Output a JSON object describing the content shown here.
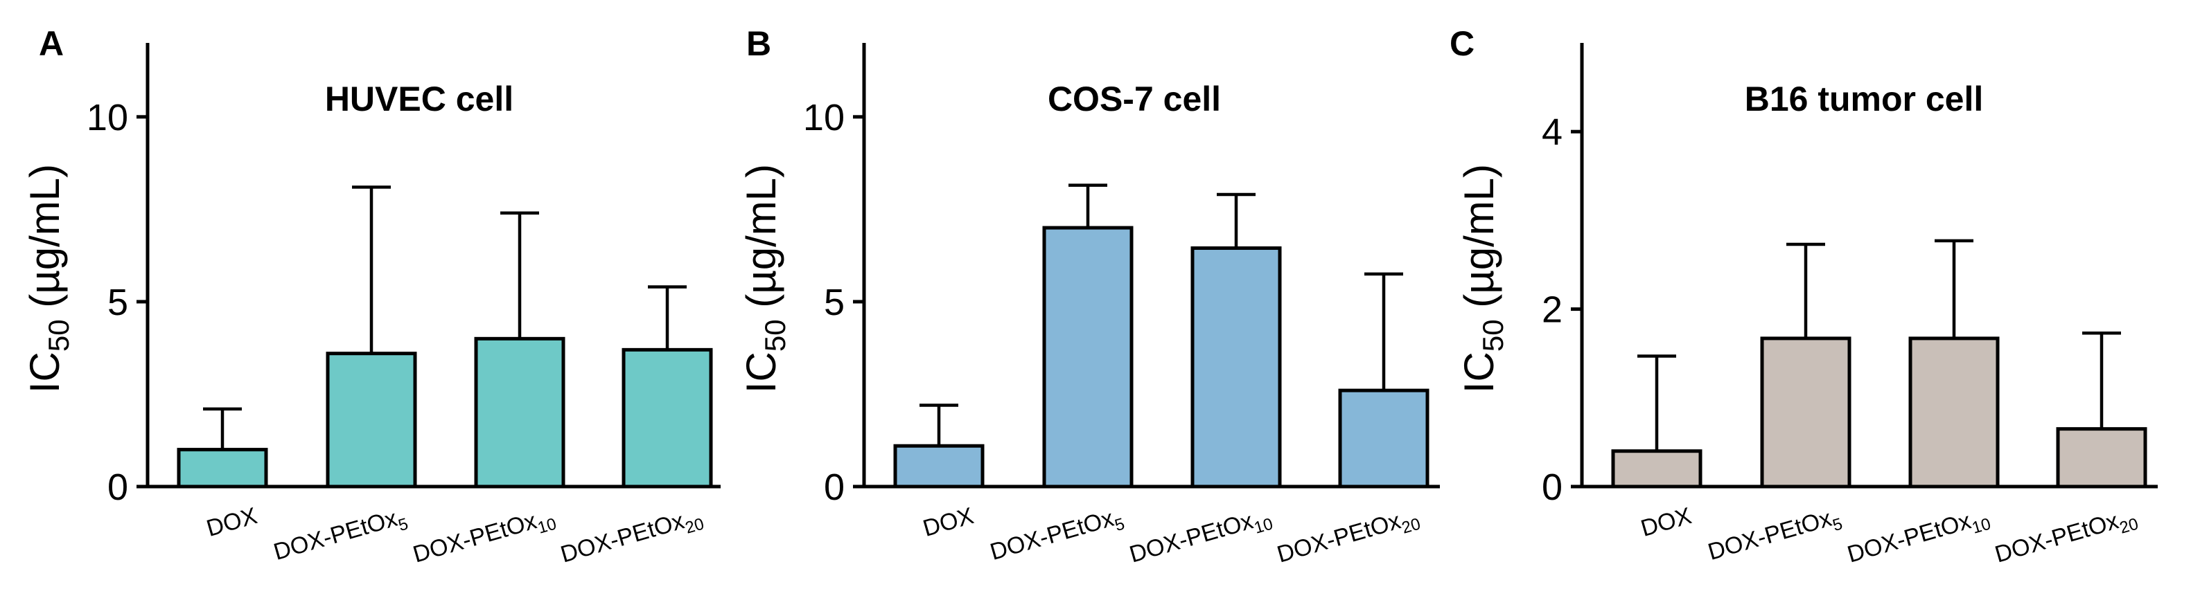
{
  "figure_labels": [
    "A",
    "B",
    "C"
  ],
  "chart_data": [
    {
      "type": "bar",
      "panel": "A",
      "title": "HUVEC cell",
      "ylabel": "IC50 (µg/mL)",
      "ylim": [
        0,
        12
      ],
      "yticks": [
        0,
        5,
        10
      ],
      "categories": [
        "DOX",
        "DOX-PEtOx5",
        "DOX-PEtOx10",
        "DOX-PEtOx20"
      ],
      "values": [
        1.0,
        3.6,
        4.0,
        3.7
      ],
      "errors": [
        1.1,
        4.5,
        3.4,
        1.7
      ],
      "color": "#6ec9c7"
    },
    {
      "type": "bar",
      "panel": "B",
      "title": "COS-7 cell",
      "ylabel": "IC50 (µg/mL)",
      "ylim": [
        0,
        12
      ],
      "yticks": [
        0,
        5,
        10
      ],
      "categories": [
        "DOX",
        "DOX-PEtOx5",
        "DOX-PEtOx10",
        "DOX-PEtOx20"
      ],
      "values": [
        1.1,
        7.0,
        6.45,
        2.6
      ],
      "errors": [
        1.1,
        1.15,
        1.45,
        3.15
      ],
      "color": "#86b7d8"
    },
    {
      "type": "bar",
      "panel": "C",
      "title": "B16 tumor cell",
      "ylabel": "IC50 (µg/mL)",
      "ylim": [
        0,
        5
      ],
      "yticks": [
        0,
        2,
        4
      ],
      "categories": [
        "DOX",
        "DOX-PEtOx5",
        "DOX-PEtOx10",
        "DOX-PEtOx20"
      ],
      "values": [
        0.4,
        1.67,
        1.67,
        0.65
      ],
      "errors": [
        1.07,
        1.06,
        1.1,
        1.08
      ],
      "color": "#c9bfb8"
    }
  ]
}
